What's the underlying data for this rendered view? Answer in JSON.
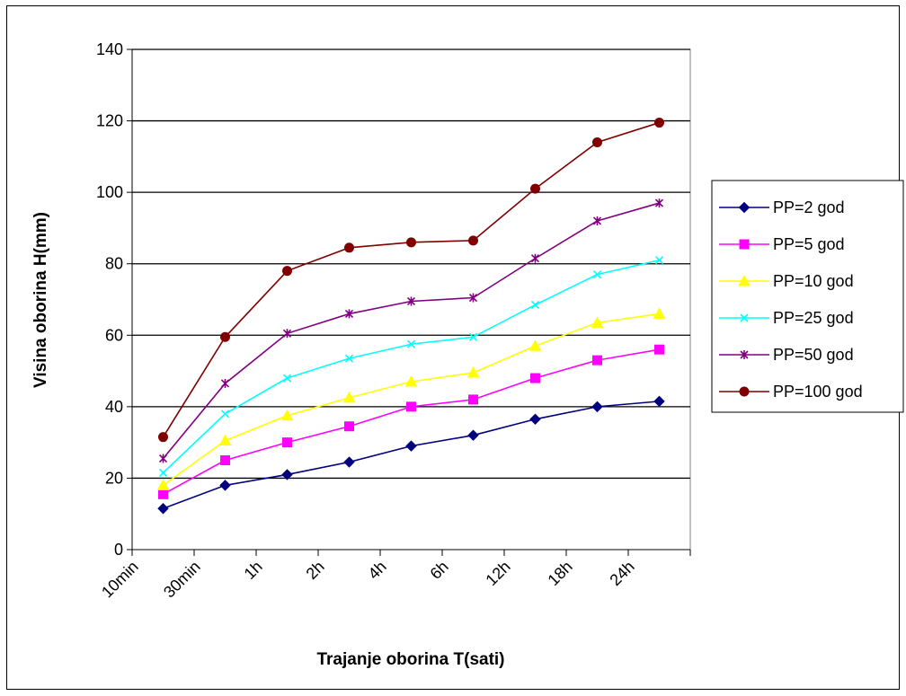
{
  "chart_data": {
    "type": "line",
    "xlabel": "Trajanje oborina T(sati)",
    "ylabel": "Visina oborina H(mm)",
    "categories": [
      "10min",
      "30min",
      "1h",
      "2h",
      "4h",
      "6h",
      "12h",
      "18h",
      "24h"
    ],
    "ylim": [
      0,
      140
    ],
    "yticks": [
      0,
      20,
      40,
      60,
      80,
      100,
      120,
      140
    ],
    "grid": true,
    "legend_position": "right",
    "series": [
      {
        "name": "PP=2 god",
        "marker": "diamond",
        "color": "#000080",
        "values": [
          11.5,
          18,
          21,
          24.5,
          29,
          32,
          36.5,
          40,
          41.5
        ]
      },
      {
        "name": "PP=5 god",
        "marker": "square",
        "color": "#FF00FF",
        "values": [
          15.5,
          25,
          30,
          34.5,
          40,
          42,
          48,
          53,
          56
        ]
      },
      {
        "name": "PP=10 god",
        "marker": "triangle",
        "color": "#FFFF00",
        "values": [
          18,
          30.5,
          37.5,
          42.5,
          47,
          49.5,
          57,
          63.5,
          66
        ]
      },
      {
        "name": "PP=25 god",
        "marker": "x",
        "color": "#00FFFF",
        "values": [
          21.5,
          38,
          48,
          53.5,
          57.5,
          59.5,
          68.5,
          77,
          81
        ]
      },
      {
        "name": "PP=50 god",
        "marker": "star",
        "color": "#800080",
        "values": [
          25.5,
          46.5,
          60.5,
          66,
          69.5,
          70.5,
          81.5,
          92,
          97
        ]
      },
      {
        "name": "PP=100 god",
        "marker": "circle",
        "color": "#800000",
        "values": [
          31.5,
          59.5,
          78,
          84.5,
          86,
          86.5,
          101,
          114,
          119.5
        ]
      }
    ]
  }
}
